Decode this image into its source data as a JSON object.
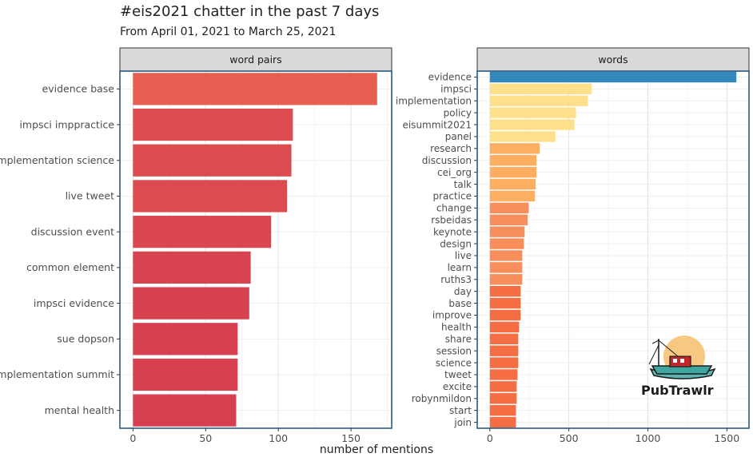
{
  "title": "#eis2021 chatter in the past 7 days",
  "subtitle": "From April 01, 2021 to March 25, 2021",
  "xlabel": "number of mentions",
  "logo_text": "PubTrawlr",
  "chart_data": [
    {
      "type": "bar",
      "orientation": "horizontal",
      "facet": "word pairs",
      "categories": [
        "evidence base",
        "impsci imppractice",
        "implementation science",
        "live tweet",
        "discussion event",
        "common element",
        "impsci evidence",
        "sue dopson",
        "implementation summit",
        "mental health"
      ],
      "values": [
        168,
        110,
        109,
        106,
        95,
        81,
        80,
        72,
        72,
        71
      ],
      "xticks": [
        0,
        50,
        100,
        150
      ],
      "xlim": [
        -9,
        178
      ],
      "xlabel": "number of mentions",
      "grid": true
    },
    {
      "type": "bar",
      "orientation": "horizontal",
      "facet": "words",
      "categories": [
        "evidence",
        "impsci",
        "implementation",
        "policy",
        "eisummit2021",
        "panel",
        "research",
        "discussion",
        "cei_org",
        "talk",
        "practice",
        "change",
        "rsbeidas",
        "keynote",
        "design",
        "live",
        "learn",
        "ruths3",
        "day",
        "base",
        "improve",
        "health",
        "share",
        "session",
        "science",
        "tweet",
        "excite",
        "robynmildon",
        "start",
        "join"
      ],
      "values": [
        1560,
        645,
        620,
        545,
        535,
        415,
        315,
        295,
        295,
        290,
        285,
        245,
        240,
        220,
        215,
        205,
        205,
        205,
        195,
        195,
        195,
        185,
        180,
        180,
        180,
        175,
        170,
        170,
        165,
        165
      ],
      "xticks": [
        0,
        500,
        1000,
        1500
      ],
      "xlim": [
        -80,
        1640
      ],
      "xlabel": "number of mentions",
      "grid": true
    }
  ]
}
